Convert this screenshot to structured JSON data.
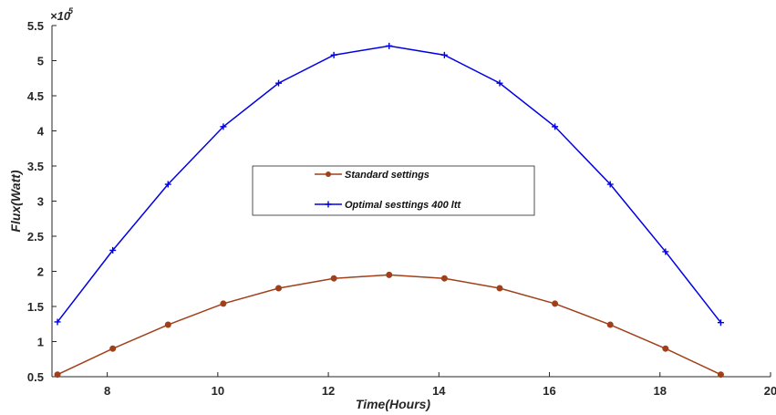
{
  "chart_data": {
    "type": "line",
    "xlabel": "Time(Hours)",
    "ylabel": "Flux(Watt)",
    "y_exponent_label": "×10",
    "y_exponent_power": "5",
    "xlim": [
      7,
      20
    ],
    "ylim": [
      0.5,
      5.5
    ],
    "x_ticks": [
      8,
      10,
      12,
      14,
      16,
      18,
      20
    ],
    "x_tick_labels": [
      "8",
      "10",
      "12",
      "14",
      "16",
      "18",
      "20"
    ],
    "y_ticks": [
      0.5,
      1,
      1.5,
      2,
      2.5,
      3,
      3.5,
      4,
      4.5,
      5,
      5.5
    ],
    "y_tick_labels": [
      "0.5",
      "1",
      "1.5",
      "2",
      "2.5",
      "3",
      "3.5",
      "4",
      "4.5",
      "5",
      "5.5"
    ],
    "grid": false,
    "legend_position": "center",
    "series": [
      {
        "name": "Standard settings",
        "color": "#A0401A",
        "marker": "dot",
        "x": [
          7.1,
          8.1,
          9.1,
          10.1,
          11.1,
          12.1,
          13.1,
          14.1,
          15.1,
          16.1,
          17.1,
          18.1,
          19.1
        ],
        "y": [
          0.53,
          0.9,
          1.24,
          1.54,
          1.76,
          1.9,
          1.95,
          1.9,
          1.76,
          1.54,
          1.24,
          0.9,
          0.53
        ]
      },
      {
        "name": "Optimal sesttings 400 ltt",
        "color": "#0000E6",
        "marker": "plus",
        "x": [
          7.1,
          8.1,
          9.1,
          10.1,
          11.1,
          12.1,
          13.1,
          14.1,
          15.1,
          16.1,
          17.1,
          18.1,
          19.1
        ],
        "y": [
          1.28,
          2.3,
          3.24,
          4.06,
          4.68,
          5.08,
          5.21,
          5.08,
          4.68,
          4.06,
          3.24,
          2.28,
          1.27
        ]
      }
    ]
  }
}
